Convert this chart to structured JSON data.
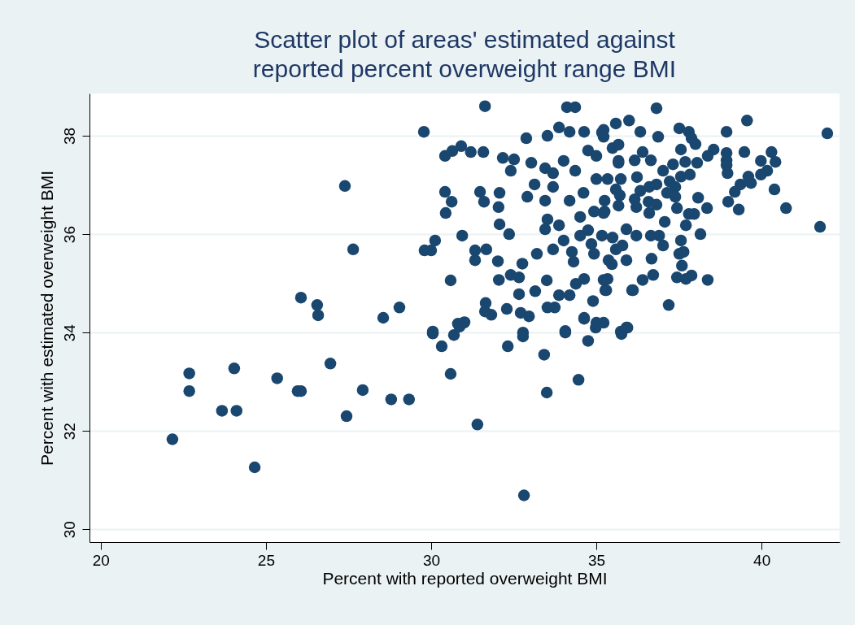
{
  "chart_data": {
    "type": "scatter",
    "title": "Scatter plot of areas' estimated against reported percent overweight range BMI",
    "xlabel": "Percent with reported overweight BMI",
    "ylabel": "Percent with estimated overweight BMI",
    "xlim": [
      19.66,
      42.36
    ],
    "ylim": [
      29.74,
      38.86
    ],
    "xticks": [
      20,
      25,
      30,
      35,
      40
    ],
    "yticks": [
      30,
      32,
      34,
      36,
      38
    ],
    "grid": "y",
    "marker": "circle",
    "series": [
      {
        "color": "#1a476f",
        "x": [
          22.17,
          22.68,
          22.68,
          23.67,
          24.11,
          24.04,
          24.66,
          25.34,
          25.96,
          26.06,
          26.06,
          26.55,
          26.58,
          26.95,
          27.39,
          27.64,
          27.44,
          27.93,
          28.55,
          28.79,
          29.04,
          29.33,
          29.78,
          29.8,
          30.0,
          30.12,
          30.05,
          30.32,
          30.59,
          30.59,
          30.62,
          30.44,
          30.42,
          30.42,
          30.64,
          30.91,
          31.2,
          31.58,
          31.63,
          30.94,
          31.48,
          31.6,
          32.07,
          32.04,
          32.07,
          32.36,
          31.33,
          31.67,
          31.33,
          32.02,
          32.76,
          32.05,
          32.41,
          32.66,
          33.2,
          33.69,
          34.01,
          33.5,
          33.15,
          32.66,
          31.65,
          31.63,
          31.82,
          32.29,
          32.71,
          32.96,
          33.52,
          33.74,
          33.87,
          34.19,
          34.63,
          34.38,
          34.9,
          35.22,
          35.27,
          34.63,
          35.0,
          30.99,
          30.81,
          30.05,
          32.78,
          34.06,
          34.11,
          34.36,
          32.17,
          32.51,
          32.41,
          32.88,
          32.91,
          33.03,
          33.13,
          33.45,
          33.52,
          33.87,
          34.19,
          34.63,
          35.17,
          35.59,
          34.01,
          34.75,
          35.0,
          33.69,
          34.36,
          33.69,
          33.45,
          34.19,
          34.61,
          34.93,
          35.25,
          33.52,
          33.87,
          34.51,
          33.45,
          34.51,
          34.75,
          35.17,
          35.49,
          34.85,
          34.93,
          35.37,
          35.47,
          34.26,
          34.31,
          35.67,
          35.74,
          35.0,
          35.59,
          36.82,
          39.56,
          38.94,
          41.99,
          35.99,
          36.33,
          36.87,
          37.51,
          37.8,
          37.88,
          38.0,
          37.56,
          38.55,
          38.37,
          38.94,
          38.94,
          38.94,
          38.97,
          39.48,
          39.98,
          40.3,
          40.42,
          40.17,
          39.98,
          39.6,
          39.68,
          39.36,
          39.19,
          40.39,
          40.74,
          38.99,
          39.31,
          38.08,
          38.35,
          41.77,
          38.15,
          37.71,
          37.8,
          37.96,
          37.07,
          37.56,
          37.51,
          37.64,
          37.59,
          37.44,
          37.71,
          37.88,
          38.37,
          37.19,
          36.67,
          36.72,
          36.4,
          36.08,
          37.02,
          36.9,
          36.65,
          36.21,
          35.91,
          35.79,
          35.91,
          35.59,
          35.34,
          35.3,
          35.22,
          35.91,
          35.74,
          37.02,
          37.32,
          37.69,
          38.05,
          37.56,
          37.83,
          37.22,
          37.39,
          37.14,
          37.39,
          37.44,
          36.82,
          36.6,
          36.33,
          36.16,
          36.21,
          36.58,
          36.82,
          36.6,
          35.67,
          35.71,
          35.67,
          35.34,
          35.25,
          35.22,
          36.16,
          36.4,
          36.65,
          35.49,
          35.67,
          35.22,
          35.22,
          36.23,
          31.4,
          33.5,
          34.46,
          30.69,
          30.86,
          31.01,
          32.32,
          32.78,
          33.42,
          34.06,
          34.75,
          34.98,
          35.76,
          35.94,
          34.63,
          36.11,
          32.81
        ],
        "values": [
          31.83,
          33.17,
          32.81,
          32.41,
          32.41,
          33.27,
          31.26,
          33.07,
          32.81,
          32.81,
          34.71,
          34.56,
          34.35,
          33.37,
          36.98,
          35.69,
          32.3,
          32.83,
          34.3,
          32.64,
          34.51,
          32.64,
          38.08,
          35.67,
          35.67,
          35.87,
          33.98,
          33.72,
          33.16,
          35.06,
          36.66,
          36.43,
          36.86,
          37.59,
          37.69,
          37.79,
          37.67,
          37.67,
          38.6,
          35.97,
          36.86,
          36.66,
          36.84,
          36.55,
          36.2,
          36.0,
          35.67,
          35.69,
          35.47,
          35.45,
          35.4,
          35.07,
          35.17,
          35.12,
          35.6,
          35.69,
          35.87,
          35.06,
          34.84,
          34.78,
          34.6,
          34.43,
          34.36,
          34.48,
          34.4,
          34.33,
          34.51,
          34.51,
          34.76,
          34.76,
          35.09,
          34.99,
          34.64,
          35.07,
          34.86,
          34.28,
          34.2,
          34.2,
          34.18,
          34.02,
          34.0,
          34.03,
          38.58,
          38.58,
          37.55,
          37.52,
          37.29,
          37.95,
          36.76,
          37.45,
          37.01,
          37.34,
          38.0,
          38.17,
          38.08,
          38.08,
          38.07,
          38.25,
          37.49,
          37.7,
          37.59,
          37.24,
          37.29,
          36.96,
          36.68,
          36.68,
          36.84,
          36.46,
          36.46,
          36.3,
          36.18,
          36.35,
          36.1,
          35.97,
          36.08,
          35.97,
          35.93,
          35.8,
          35.6,
          35.47,
          35.39,
          35.64,
          35.44,
          37.49,
          37.12,
          37.12,
          36.91,
          38.56,
          38.31,
          38.08,
          38.05,
          38.31,
          38.08,
          37.98,
          38.15,
          38.08,
          37.95,
          37.83,
          37.72,
          37.72,
          37.59,
          37.65,
          37.5,
          37.4,
          37.24,
          37.67,
          37.49,
          37.67,
          37.47,
          37.29,
          37.21,
          37.17,
          37.04,
          37.01,
          36.86,
          36.91,
          36.53,
          36.66,
          36.5,
          36.74,
          36.53,
          36.15,
          36.0,
          36.18,
          36.41,
          36.41,
          36.25,
          35.87,
          35.6,
          35.64,
          35.36,
          35.12,
          35.09,
          35.16,
          35.07,
          34.56,
          35.5,
          35.17,
          35.07,
          34.86,
          35.77,
          35.97,
          35.97,
          35.97,
          36.1,
          35.77,
          35.47,
          35.69,
          35.09,
          34.86,
          34.2,
          34.1,
          34.02,
          37.29,
          37.42,
          37.47,
          37.45,
          37.17,
          37.21,
          37.07,
          36.96,
          36.84,
          36.76,
          36.53,
          37.01,
          36.96,
          36.88,
          36.71,
          36.55,
          36.66,
          36.6,
          36.43,
          37.45,
          36.79,
          36.58,
          37.12,
          36.68,
          36.43,
          37.5,
          37.67,
          37.5,
          37.75,
          37.82,
          37.98,
          38.12,
          37.16,
          32.13,
          32.78,
          33.04,
          33.95,
          34.12,
          34.21,
          33.72,
          33.92,
          33.55,
          34.0,
          33.83,
          34.1,
          33.97,
          34.1,
          34.3,
          34.86,
          30.69
        ]
      }
    ]
  }
}
